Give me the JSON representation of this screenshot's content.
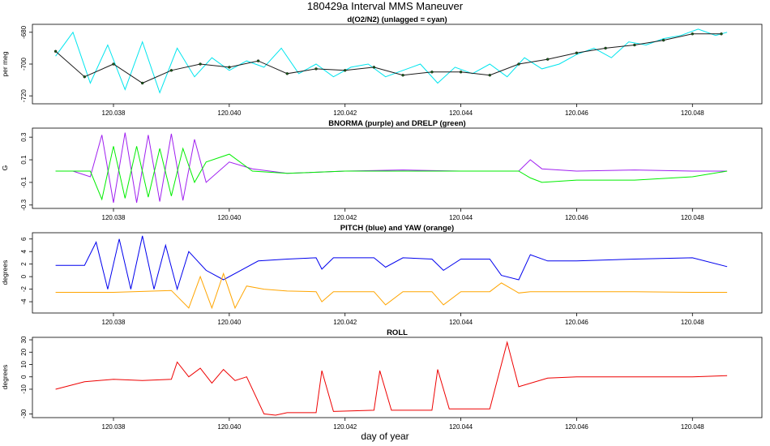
{
  "figure_title": "180429a   Interval MMS Maneuver",
  "x_axis_label": "day of year",
  "chart_data": [
    {
      "type": "line",
      "title": "d(O2/N2) (unlagged = cyan)",
      "ylabel": "per meg",
      "xlim": [
        120.0366,
        120.0492
      ],
      "ylim": [
        -725,
        -675
      ],
      "xticks": [
        "120.038",
        "120.040",
        "120.042",
        "120.044",
        "120.046",
        "120.048"
      ],
      "yticks": [
        "-720",
        "-700",
        "-680"
      ],
      "series": [
        {
          "name": "unlagged",
          "color": "#00e5ee",
          "x": [
            120.037,
            120.0373,
            120.0376,
            120.0379,
            120.0382,
            120.0385,
            120.0388,
            120.0391,
            120.0394,
            120.0397,
            120.04,
            120.0403,
            120.0406,
            120.0409,
            120.0412,
            120.0415,
            120.0418,
            120.0421,
            120.0424,
            120.0427,
            120.043,
            120.0433,
            120.0436,
            120.0439,
            120.0442,
            120.0445,
            120.0448,
            120.0451,
            120.0454,
            120.0457,
            120.046,
            120.0463,
            120.0466,
            120.0469,
            120.0472,
            120.0475,
            120.0478,
            120.0481,
            120.0484,
            120.0486
          ],
          "values": [
            -695,
            -680,
            -712,
            -688,
            -716,
            -686,
            -718,
            -690,
            -708,
            -696,
            -704,
            -698,
            -702,
            -690,
            -706,
            -700,
            -708,
            -702,
            -700,
            -708,
            -704,
            -700,
            -712,
            -702,
            -706,
            -700,
            -708,
            -696,
            -703,
            -700,
            -694,
            -690,
            -696,
            -686,
            -688,
            -684,
            -682,
            -678,
            -682,
            -680
          ]
        },
        {
          "name": "lagged",
          "color": "#1a1a1a",
          "x": [
            120.037,
            120.0375,
            120.038,
            120.0385,
            120.039,
            120.0395,
            120.04,
            120.0405,
            120.041,
            120.0415,
            120.042,
            120.0425,
            120.043,
            120.0435,
            120.044,
            120.0445,
            120.045,
            120.0455,
            120.046,
            120.0465,
            120.047,
            120.0475,
            120.048,
            120.0485
          ],
          "values": [
            -692,
            -708,
            -700,
            -712,
            -704,
            -700,
            -702,
            -698,
            -706,
            -703,
            -704,
            -702,
            -707,
            -705,
            -705,
            -707,
            -700,
            -697,
            -693,
            -690,
            -688,
            -685,
            -681,
            -681
          ]
        }
      ]
    },
    {
      "type": "line",
      "title": "BNORMA (purple) and DRELP (green)",
      "ylabel": "G",
      "xlim": [
        120.0366,
        120.0492
      ],
      "ylim": [
        -0.33,
        0.38
      ],
      "xticks": [
        "120.038",
        "120.040",
        "120.042",
        "120.044",
        "120.046",
        "120.048"
      ],
      "yticks": [
        "-0.3",
        "-0.1",
        "0.1",
        "0.3"
      ],
      "series": [
        {
          "name": "BNORMA",
          "color": "#a020f0",
          "x": [
            120.037,
            120.0373,
            120.0376,
            120.0378,
            120.038,
            120.0382,
            120.0384,
            120.0386,
            120.0388,
            120.039,
            120.0392,
            120.0394,
            120.0396,
            120.04,
            120.0404,
            120.041,
            120.042,
            120.043,
            120.044,
            120.045,
            120.0452,
            120.0454,
            120.046,
            120.047,
            120.048,
            120.0486
          ],
          "values": [
            0.0,
            0.0,
            -0.05,
            0.32,
            -0.28,
            0.34,
            -0.28,
            0.32,
            -0.27,
            0.33,
            -0.26,
            0.28,
            -0.1,
            0.08,
            0.02,
            -0.02,
            0.0,
            0.01,
            0.0,
            0.0,
            0.1,
            0.02,
            0.0,
            0.01,
            0.0,
            0.0
          ]
        },
        {
          "name": "DRELP",
          "color": "#00ee00",
          "x": [
            120.037,
            120.0373,
            120.0376,
            120.0378,
            120.038,
            120.0382,
            120.0384,
            120.0386,
            120.0388,
            120.039,
            120.0392,
            120.0394,
            120.0396,
            120.04,
            120.0404,
            120.041,
            120.042,
            120.043,
            120.044,
            120.045,
            120.0452,
            120.0454,
            120.046,
            120.047,
            120.048,
            120.0486
          ],
          "values": [
            0.0,
            0.0,
            0.0,
            -0.25,
            0.22,
            -0.24,
            0.22,
            -0.23,
            0.2,
            -0.22,
            0.2,
            -0.1,
            0.08,
            0.15,
            0.0,
            -0.02,
            0.0,
            0.0,
            0.0,
            0.0,
            -0.06,
            -0.1,
            -0.08,
            -0.08,
            -0.05,
            0.0
          ]
        }
      ]
    },
    {
      "type": "line",
      "title": "PITCH (blue) and YAW (orange)",
      "ylabel": "degrees",
      "xlim": [
        120.0366,
        120.0492
      ],
      "ylim": [
        -5.8,
        7
      ],
      "xticks": [
        "120.038",
        "120.040",
        "120.042",
        "120.044",
        "120.046",
        "120.048"
      ],
      "yticks": [
        "-4",
        "-2",
        "0",
        "2",
        "4",
        "6"
      ],
      "series": [
        {
          "name": "PITCH",
          "color": "#0000ee",
          "x": [
            120.037,
            120.0375,
            120.0377,
            120.0379,
            120.0381,
            120.0383,
            120.0385,
            120.0387,
            120.0389,
            120.0391,
            120.0393,
            120.0396,
            120.0399,
            120.0402,
            120.0405,
            120.041,
            120.0415,
            120.0416,
            120.0418,
            120.0425,
            120.0427,
            120.043,
            120.0435,
            120.0437,
            120.044,
            120.0445,
            120.0447,
            120.045,
            120.0452,
            120.0455,
            120.046,
            120.047,
            120.048,
            120.0486
          ],
          "values": [
            1.8,
            1.8,
            5.5,
            -2,
            6,
            -2,
            6.5,
            -2,
            5,
            -2,
            4,
            1,
            -0.5,
            1,
            2.5,
            2.8,
            3,
            1.2,
            3,
            3,
            1.5,
            3,
            2.8,
            1,
            2.8,
            2.8,
            0.2,
            -0.5,
            3.5,
            2.5,
            2.5,
            2.8,
            3,
            1.6
          ]
        },
        {
          "name": "YAW",
          "color": "#ffa500",
          "x": [
            120.037,
            120.038,
            120.039,
            120.0393,
            120.0395,
            120.0397,
            120.0399,
            120.0401,
            120.0403,
            120.0406,
            120.041,
            120.0415,
            120.0416,
            120.0418,
            120.0425,
            120.0427,
            120.043,
            120.0435,
            120.0437,
            120.044,
            120.0445,
            120.0447,
            120.045,
            120.0452,
            120.046,
            120.047,
            120.048,
            120.0486
          ],
          "values": [
            -2.5,
            -2.5,
            -2.2,
            -5,
            0,
            -5,
            0.5,
            -5,
            -1.5,
            -2,
            -2.3,
            -2.4,
            -4,
            -2.4,
            -2.4,
            -4.5,
            -2.4,
            -2.4,
            -4.5,
            -2.4,
            -2.4,
            -1,
            -2.6,
            -2.4,
            -2.4,
            -2.4,
            -2.5,
            -2.5
          ]
        }
      ]
    },
    {
      "type": "line",
      "title": "ROLL",
      "ylabel": "degrees",
      "xlim": [
        120.0366,
        120.0492
      ],
      "ylim": [
        -33,
        32
      ],
      "xticks": [
        "120.038",
        "120.040",
        "120.042",
        "120.044",
        "120.046",
        "120.048"
      ],
      "yticks": [
        "-30",
        "-10",
        "0",
        "10",
        "20",
        "30"
      ],
      "series": [
        {
          "name": "ROLL",
          "color": "#ee0000",
          "x": [
            120.037,
            120.0375,
            120.038,
            120.0385,
            120.039,
            120.0391,
            120.0393,
            120.0395,
            120.0397,
            120.0399,
            120.0401,
            120.0403,
            120.0406,
            120.0408,
            120.041,
            120.0415,
            120.0416,
            120.0418,
            120.0425,
            120.0426,
            120.0428,
            120.0435,
            120.0436,
            120.0438,
            120.0445,
            120.0448,
            120.045,
            120.0455,
            120.046,
            120.047,
            120.048,
            120.0486
          ],
          "values": [
            -10,
            -4,
            -2,
            -3,
            -2,
            12,
            0,
            7,
            -5,
            6,
            -3,
            0,
            -30,
            -31,
            -29,
            -29,
            5,
            -28,
            -27,
            5,
            -27,
            -27,
            6,
            -26,
            -26,
            28,
            -8,
            -1,
            0,
            0,
            0,
            1
          ]
        }
      ]
    }
  ]
}
